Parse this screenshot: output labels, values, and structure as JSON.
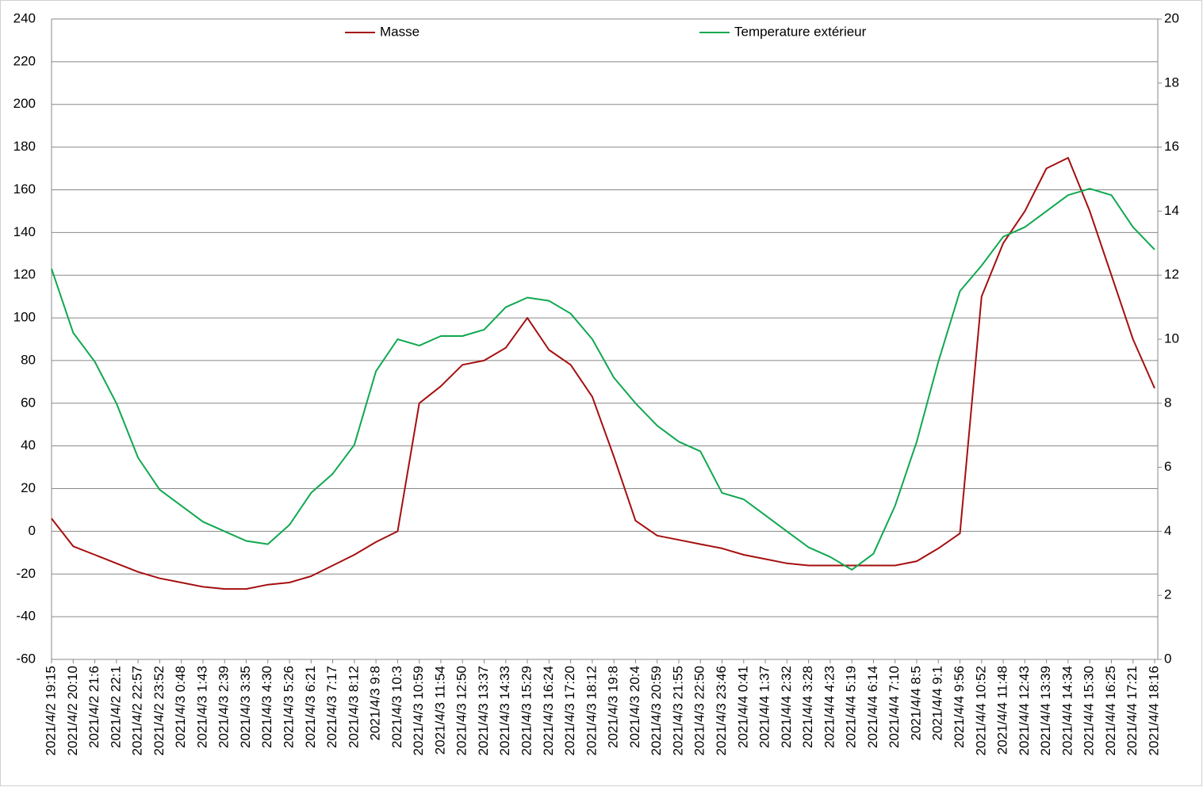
{
  "chart_data": {
    "type": "line",
    "categories": [
      "2021/4/2 19:15",
      "2021/4/2 20:10",
      "2021/4/2 21:6",
      "2021/4/2 22:1",
      "2021/4/2 22:57",
      "2021/4/2 23:52",
      "2021/4/3 0:48",
      "2021/4/3 1:43",
      "2021/4/3 2:39",
      "2021/4/3 3:35",
      "2021/4/3 4:30",
      "2021/4/3 5:26",
      "2021/4/3 6:21",
      "2021/4/3 7:17",
      "2021/4/3 8:12",
      "2021/4/3 9:8",
      "2021/4/3 10:3",
      "2021/4/3 10:59",
      "2021/4/3 11:54",
      "2021/4/3 12:50",
      "2021/4/3 13:37",
      "2021/4/3 14:33",
      "2021/4/3 15:29",
      "2021/4/3 16:24",
      "2021/4/3 17:20",
      "2021/4/3 18:12",
      "2021/4/3 19:8",
      "2021/4/3 20:4",
      "2021/4/3 20:59",
      "2021/4/3 21:55",
      "2021/4/3 22:50",
      "2021/4/3 23:46",
      "2021/4/4 0:41",
      "2021/4/4 1:37",
      "2021/4/4 2:32",
      "2021/4/4 3:28",
      "2021/4/4 4:23",
      "2021/4/4 5:19",
      "2021/4/4 6:14",
      "2021/4/4 7:10",
      "2021/4/4 8:5",
      "2021/4/4 9:1",
      "2021/4/4 9:56",
      "2021/4/4 10:52",
      "2021/4/4 11:48",
      "2021/4/4 12:43",
      "2021/4/4 13:39",
      "2021/4/4 14:34",
      "2021/4/4 15:30",
      "2021/4/4 16:25",
      "2021/4/4 17:21",
      "2021/4/4 18:16"
    ],
    "series": [
      {
        "name": "Masse",
        "color": "#a50f0f",
        "values": [
          6,
          -7,
          -11,
          -15,
          -19,
          -22,
          -24,
          -26,
          -27,
          -27,
          -25,
          -24,
          -21,
          -16,
          -11,
          -5,
          0,
          60,
          68,
          78,
          80,
          86,
          100,
          85,
          78,
          63,
          35,
          5,
          -2,
          -4,
          -6,
          -8,
          -11,
          -13,
          -15,
          -16,
          -16,
          -16,
          -16,
          -16,
          -14,
          -8,
          -1,
          110,
          135,
          150,
          170,
          175,
          150,
          120,
          90,
          67
        ]
      },
      {
        "name": "Temperature extérieur",
        "color": "#10a850",
        "axis": "y2",
        "values": [
          12.2,
          10.2,
          9.3,
          8.0,
          6.3,
          5.3,
          4.8,
          4.3,
          4.0,
          3.7,
          3.6,
          4.2,
          5.2,
          5.8,
          6.7,
          9.0,
          10.0,
          9.8,
          10.1,
          10.1,
          10.3,
          11.0,
          11.3,
          11.2,
          10.8,
          10.0,
          8.8,
          8.0,
          7.3,
          6.8,
          6.5,
          5.2,
          5.0,
          4.5,
          4.0,
          3.5,
          3.2,
          2.8,
          3.3,
          4.8,
          6.8,
          9.3,
          11.5,
          12.3,
          13.2,
          13.5,
          14.0,
          14.5,
          14.7,
          14.5,
          13.5,
          12.8
        ]
      }
    ],
    "ylim": [
      -60,
      240
    ],
    "yticks": [
      -60,
      -40,
      -20,
      0,
      20,
      40,
      60,
      80,
      100,
      120,
      140,
      160,
      180,
      200,
      220,
      240
    ],
    "y2lim": [
      0,
      20
    ],
    "y2ticks": [
      0,
      2,
      4,
      6,
      8,
      10,
      12,
      14,
      16,
      18,
      20
    ],
    "grid": true,
    "legend": "top"
  }
}
